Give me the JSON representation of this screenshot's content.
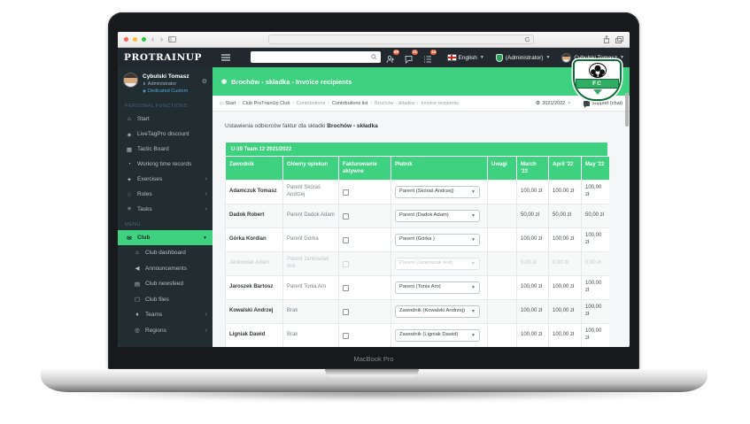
{
  "browser": {
    "back_label": "‹",
    "forward_label": "›"
  },
  "app_header": {
    "logo": "PROTRAINUP",
    "search_placeholder": "",
    "notifications": [
      {
        "icon": "members-icon",
        "count": "69"
      },
      {
        "icon": "messages-icon",
        "count": "31"
      },
      {
        "icon": "tasks-icon",
        "count": "14"
      }
    ],
    "language": "English",
    "role_switcher": "(Administrator)",
    "user_name": "Cybulski Tomasz"
  },
  "sidebar": {
    "user": {
      "name": "Cybulski Tomasz",
      "role": "Administrator",
      "plan": "Dedicated Custom"
    },
    "sections": [
      {
        "label": "PERSONAL FUNCTIONS",
        "items": [
          {
            "label": "Start",
            "icon": "home-icon"
          },
          {
            "label": "LiveTagPro discount",
            "icon": "tag-icon"
          },
          {
            "label": "Tactic Board",
            "icon": "board-icon"
          },
          {
            "label": "Working time records",
            "icon": "clock-icon"
          },
          {
            "label": "Exercises",
            "icon": "exercises-icon",
            "chevron": true
          },
          {
            "label": "Roles",
            "icon": "roles-icon",
            "chevron": true
          },
          {
            "label": "Tasks",
            "icon": "tasks-list-icon",
            "chevron": true
          }
        ]
      },
      {
        "label": "MENU",
        "items": [
          {
            "label": "Club",
            "icon": "club-icon",
            "active": true,
            "expanded": true,
            "children": [
              {
                "label": "Club dashboard",
                "icon": "dashboard-icon"
              },
              {
                "label": "Announcements",
                "icon": "announcements-icon"
              },
              {
                "label": "Club newsfeed",
                "icon": "newsfeed-icon"
              },
              {
                "label": "Club files",
                "icon": "files-icon"
              },
              {
                "label": "Teams",
                "icon": "teams-icon",
                "chevron": true
              },
              {
                "label": "Regions",
                "icon": "regions-icon",
                "chevron": true
              }
            ]
          }
        ]
      }
    ]
  },
  "page": {
    "title": "Brochów - składka - Invoice recipients",
    "breadcrumb": [
      {
        "label": "Start",
        "strong": true,
        "home": true
      },
      {
        "label": "Club ProTrainUp Club",
        "strong": true
      },
      {
        "label": "Contributions",
        "strong": false
      },
      {
        "label": "Contributions list",
        "strong": true
      },
      {
        "label": "Brochów - składka",
        "strong": false
      },
      {
        "label": "Invoice recipients",
        "strong": false
      }
    ],
    "season": "2021/2022",
    "support": "Support (chat)",
    "subtitle_prefix": "Ustawienia odbiorców faktur dla składki",
    "subtitle_bold": "Brochów - składka",
    "crest_text": "FC"
  },
  "table": {
    "band": "U-19 Team 12 2021/2022",
    "columns": [
      "Zawodnik",
      "Główny opiekun",
      "Fakturowanie aktywne",
      "Płatnik",
      "Uwagi",
      "March '22",
      "April '22",
      "May '22"
    ],
    "rows": [
      {
        "player": "Adamczuk Tomasz",
        "guardian": "Parent Skóraś Andrzej",
        "invoicing_checked": false,
        "payer": "Parent (Skóraś Andrzej)",
        "notes": "",
        "months": [
          "100,00 zł",
          "100,00 zł",
          "100,00 zł"
        ],
        "muted": false
      },
      {
        "player": "Dadok Robert",
        "guardian": "Parent Dadok Adam",
        "invoicing_checked": false,
        "payer": "Parent (Dadok Adam)",
        "notes": "",
        "months": [
          "50,00 zł",
          "50,00 zł",
          "50,00 zł"
        ],
        "muted": false
      },
      {
        "player": "Górka Kordian",
        "guardian": "Parent Górka",
        "invoicing_checked": false,
        "payer": "Parent (Górka )",
        "notes": "",
        "months": [
          "100,00 zł",
          "100,00 zł",
          "100,00 zł"
        ],
        "muted": false
      },
      {
        "player": "Jankowiak Adam",
        "guardian": "Parent Jankowiak test",
        "invoicing_checked": false,
        "payer": "Parent (Jankowiak test)",
        "notes": "",
        "months": [
          "0,00 zł",
          "0,00 zł",
          "0,00 zł"
        ],
        "muted": true
      },
      {
        "player": "Jaroszek Bartosz",
        "guardian": "Parent Tonia Aro",
        "invoicing_checked": false,
        "payer": "Parent (Tonia Aro)",
        "notes": "",
        "months": [
          "100,00 zł",
          "100,00 zł",
          "100,00 zł"
        ],
        "muted": false
      },
      {
        "player": "Kowalski Andrzej",
        "guardian": "Brak",
        "invoicing_checked": false,
        "payer": "Zawodnik (Kowalski Andrzej)",
        "notes": "",
        "months": [
          "100,00 zł",
          "100,00 zł",
          "100,00 zł"
        ],
        "muted": false
      },
      {
        "player": "Ligniak Dawid",
        "guardian": "Brak",
        "invoicing_checked": false,
        "payer": "Zawodnik (Ligniak Dawid)",
        "notes": "",
        "months": [
          "100,00 zł",
          "100,00 zł",
          "100,00 zł"
        ],
        "muted": false
      }
    ]
  },
  "laptop": {
    "label": "MacBook Pro"
  },
  "colors": {
    "accent_green": "#3ed17f",
    "badge_orange": "#f0623e",
    "sidebar_dark": "#222d32",
    "link_blue": "#4fa3d6"
  }
}
